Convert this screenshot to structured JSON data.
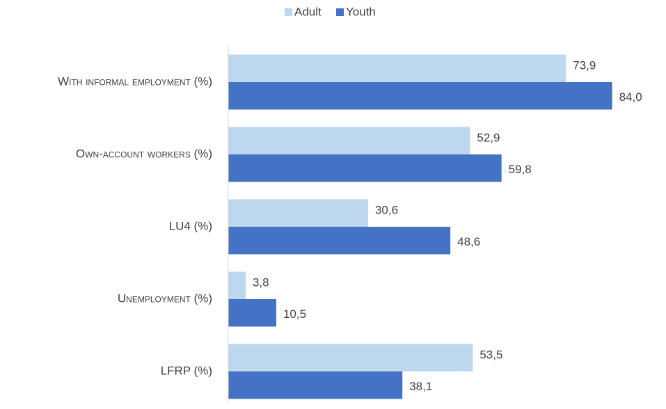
{
  "chart_data": {
    "type": "bar",
    "orientation": "horizontal",
    "categories": [
      "With informal employment (%)",
      "Own-account workers (%)",
      "LU4 (%)",
      "Unemployment (%)",
      "LFRP (%)"
    ],
    "series": [
      {
        "name": "Adult",
        "color": "#bdd7ee",
        "values": [
          73.9,
          52.9,
          30.6,
          3.8,
          53.5
        ],
        "value_labels": [
          "73,9",
          "52,9",
          "30,6",
          "3,8",
          "53,5"
        ]
      },
      {
        "name": "Youth",
        "color": "#4472c4",
        "values": [
          84.0,
          59.8,
          48.6,
          10.5,
          38.1
        ],
        "value_labels": [
          "84,0",
          "59,8",
          "48,6",
          "10,5",
          "38,1"
        ]
      }
    ],
    "xlim": [
      0,
      90
    ],
    "legend": "top"
  }
}
